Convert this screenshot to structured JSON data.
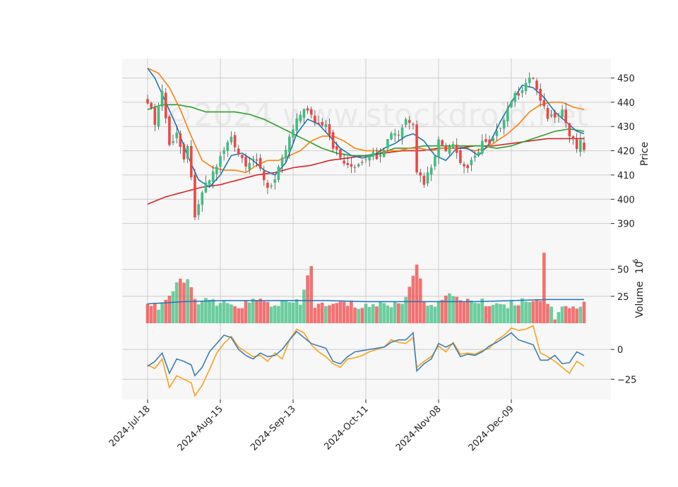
{
  "chart_data": {
    "type": "candlestick",
    "title": "",
    "watermark": "©2024 www.stockdroid.net",
    "xlabel": "",
    "ylabel_price": "Price",
    "ylabel_volume": "Volume",
    "volume_exponent_label": "10",
    "volume_exponent_power": "6",
    "date_ticks": [
      "2024-Jul-18",
      "2024-Aug-15",
      "2024-Sep-13",
      "2024-Oct-11",
      "2024-Nov-08",
      "2024-Dec-09"
    ],
    "date_tick_index": [
      0,
      20,
      40,
      60,
      80,
      100
    ],
    "num_bars": 121,
    "price_axis": {
      "ylim": [
        380,
        458
      ],
      "ticks": [
        390,
        400,
        410,
        420,
        430,
        440,
        450
      ]
    },
    "volume_axis": {
      "ylim": [
        0,
        70
      ],
      "ticks": [
        25,
        50
      ]
    },
    "osc_axis": {
      "ylim": [
        -42,
        22
      ],
      "ticks": [
        -25,
        0
      ]
    },
    "colors": {
      "up": "#3cbf80",
      "down": "#f04545",
      "grid": "#cccccc",
      "panel_bg": "#f7f7f7",
      "ma_short": "#1f77b4",
      "ma_mid": "#ff7f0e",
      "ma_long": "#2ca02c",
      "ma_longest": "#d62728",
      "volume_ma": "#1f77b4",
      "osc_fast": "#3f7fb5",
      "osc_slow": "#f5a31a"
    },
    "price_keypoints": [
      [
        0,
        441
      ],
      [
        2,
        432
      ],
      [
        4,
        445
      ],
      [
        6,
        422
      ],
      [
        8,
        428
      ],
      [
        10,
        415
      ],
      [
        11,
        421
      ],
      [
        12,
        410
      ],
      [
        13,
        391
      ],
      [
        15,
        403
      ],
      [
        17,
        408
      ],
      [
        19,
        414
      ],
      [
        21,
        420
      ],
      [
        23,
        426
      ],
      [
        25,
        419
      ],
      [
        27,
        415
      ],
      [
        29,
        417
      ],
      [
        31,
        412
      ],
      [
        33,
        405
      ],
      [
        35,
        408
      ],
      [
        37,
        416
      ],
      [
        39,
        425
      ],
      [
        41,
        432
      ],
      [
        43,
        438
      ],
      [
        45,
        434
      ],
      [
        47,
        431
      ],
      [
        49,
        432
      ],
      [
        51,
        422
      ],
      [
        53,
        417
      ],
      [
        55,
        413
      ],
      [
        57,
        414
      ],
      [
        59,
        416
      ],
      [
        61,
        419
      ],
      [
        63,
        418
      ],
      [
        65,
        421
      ],
      [
        67,
        428
      ],
      [
        69,
        427
      ],
      [
        71,
        433
      ],
      [
        73,
        432
      ],
      [
        74,
        412
      ],
      [
        76,
        407
      ],
      [
        78,
        414
      ],
      [
        80,
        424
      ],
      [
        82,
        421
      ],
      [
        84,
        424
      ],
      [
        86,
        415
      ],
      [
        88,
        413
      ],
      [
        90,
        417
      ],
      [
        92,
        424
      ],
      [
        94,
        422
      ],
      [
        96,
        427
      ],
      [
        98,
        434
      ],
      [
        100,
        441
      ],
      [
        102,
        444
      ],
      [
        104,
        448
      ],
      [
        106,
        450
      ],
      [
        108,
        440
      ],
      [
        110,
        434
      ],
      [
        112,
        435
      ],
      [
        114,
        437
      ],
      [
        116,
        426
      ],
      [
        118,
        421
      ],
      [
        119,
        423
      ],
      [
        120,
        421
      ]
    ],
    "volume_keypoints": [
      [
        0,
        20
      ],
      [
        3,
        15
      ],
      [
        6,
        26
      ],
      [
        9,
        38
      ],
      [
        11,
        40
      ],
      [
        13,
        22
      ],
      [
        16,
        20
      ],
      [
        20,
        18
      ],
      [
        22,
        16
      ],
      [
        26,
        17
      ],
      [
        30,
        21
      ],
      [
        34,
        18
      ],
      [
        38,
        19
      ],
      [
        42,
        18
      ],
      [
        45,
        55
      ],
      [
        46,
        17
      ],
      [
        50,
        16
      ],
      [
        54,
        19
      ],
      [
        58,
        16
      ],
      [
        62,
        17
      ],
      [
        66,
        18
      ],
      [
        70,
        18
      ],
      [
        74,
        55
      ],
      [
        76,
        20
      ],
      [
        80,
        19
      ],
      [
        84,
        26
      ],
      [
        88,
        21
      ],
      [
        92,
        19
      ],
      [
        96,
        18
      ],
      [
        100,
        18
      ],
      [
        104,
        22
      ],
      [
        108,
        23
      ],
      [
        109,
        65
      ],
      [
        110,
        20
      ],
      [
        112,
        6
      ],
      [
        114,
        18
      ],
      [
        117,
        14
      ],
      [
        120,
        18
      ]
    ],
    "osc_fast_keypoints": [
      [
        0,
        -14
      ],
      [
        2,
        -10
      ],
      [
        4,
        -3
      ],
      [
        6,
        -20
      ],
      [
        8,
        -8
      ],
      [
        10,
        -10
      ],
      [
        12,
        -13
      ],
      [
        13,
        -22
      ],
      [
        15,
        -15
      ],
      [
        17,
        -2
      ],
      [
        19,
        5
      ],
      [
        21,
        12
      ],
      [
        23,
        10
      ],
      [
        25,
        0
      ],
      [
        27,
        -5
      ],
      [
        29,
        -8
      ],
      [
        31,
        -3
      ],
      [
        33,
        -6
      ],
      [
        35,
        -5
      ],
      [
        37,
        0
      ],
      [
        39,
        8
      ],
      [
        41,
        15
      ],
      [
        43,
        10
      ],
      [
        45,
        5
      ],
      [
        47,
        3
      ],
      [
        49,
        1
      ],
      [
        51,
        -10
      ],
      [
        53,
        -12
      ],
      [
        55,
        -6
      ],
      [
        57,
        -2
      ],
      [
        59,
        -1
      ],
      [
        61,
        0
      ],
      [
        63,
        1
      ],
      [
        65,
        2
      ],
      [
        67,
        6
      ],
      [
        69,
        8
      ],
      [
        71,
        8
      ],
      [
        73,
        14
      ],
      [
        74,
        -18
      ],
      [
        76,
        -12
      ],
      [
        78,
        -8
      ],
      [
        80,
        5
      ],
      [
        82,
        2
      ],
      [
        84,
        5
      ],
      [
        86,
        -6
      ],
      [
        88,
        -4
      ],
      [
        90,
        -5
      ],
      [
        92,
        -2
      ],
      [
        94,
        3
      ],
      [
        96,
        6
      ],
      [
        98,
        10
      ],
      [
        100,
        14
      ],
      [
        102,
        8
      ],
      [
        104,
        6
      ],
      [
        106,
        4
      ],
      [
        108,
        -9
      ],
      [
        110,
        -9
      ],
      [
        112,
        -5
      ],
      [
        114,
        -12
      ],
      [
        116,
        -11
      ],
      [
        118,
        -2
      ],
      [
        120,
        -5
      ]
    ],
    "osc_slow_keypoints": [
      [
        0,
        -13
      ],
      [
        2,
        -16
      ],
      [
        4,
        -8
      ],
      [
        6,
        -32
      ],
      [
        8,
        -22
      ],
      [
        10,
        -25
      ],
      [
        12,
        -28
      ],
      [
        13,
        -39
      ],
      [
        15,
        -30
      ],
      [
        17,
        -17
      ],
      [
        19,
        -3
      ],
      [
        21,
        5
      ],
      [
        23,
        11
      ],
      [
        25,
        2
      ],
      [
        27,
        -2
      ],
      [
        29,
        -6
      ],
      [
        31,
        -5
      ],
      [
        33,
        -10
      ],
      [
        35,
        -3
      ],
      [
        37,
        -8
      ],
      [
        39,
        8
      ],
      [
        41,
        17
      ],
      [
        43,
        14
      ],
      [
        45,
        4
      ],
      [
        47,
        -2
      ],
      [
        49,
        -6
      ],
      [
        51,
        -12
      ],
      [
        53,
        -15
      ],
      [
        55,
        -8
      ],
      [
        57,
        -7
      ],
      [
        59,
        -5
      ],
      [
        61,
        -2
      ],
      [
        63,
        0
      ],
      [
        65,
        2
      ],
      [
        67,
        8
      ],
      [
        69,
        6
      ],
      [
        71,
        5
      ],
      [
        73,
        10
      ],
      [
        74,
        -15
      ],
      [
        76,
        -10
      ],
      [
        78,
        -6
      ],
      [
        80,
        3
      ],
      [
        82,
        -2
      ],
      [
        84,
        6
      ],
      [
        86,
        -4
      ],
      [
        88,
        -3
      ],
      [
        90,
        -4
      ],
      [
        92,
        -1
      ],
      [
        94,
        1
      ],
      [
        96,
        8
      ],
      [
        98,
        12
      ],
      [
        100,
        18
      ],
      [
        102,
        16
      ],
      [
        104,
        17
      ],
      [
        106,
        20
      ],
      [
        108,
        -3
      ],
      [
        110,
        -6
      ],
      [
        112,
        -10
      ],
      [
        114,
        -15
      ],
      [
        116,
        -20
      ],
      [
        118,
        -10
      ],
      [
        120,
        -14
      ]
    ],
    "ma_short_keypoints": [
      [
        0,
        454
      ],
      [
        2,
        450
      ],
      [
        5,
        440
      ],
      [
        8,
        430
      ],
      [
        11,
        418
      ],
      [
        14,
        408
      ],
      [
        17,
        405
      ],
      [
        20,
        410
      ],
      [
        23,
        418
      ],
      [
        26,
        419
      ],
      [
        29,
        416
      ],
      [
        32,
        412
      ],
      [
        35,
        410
      ],
      [
        38,
        415
      ],
      [
        41,
        427
      ],
      [
        44,
        433
      ],
      [
        47,
        431
      ],
      [
        50,
        426
      ],
      [
        53,
        421
      ],
      [
        56,
        418
      ],
      [
        59,
        417
      ],
      [
        62,
        418
      ],
      [
        65,
        421
      ],
      [
        68,
        423
      ],
      [
        71,
        426
      ],
      [
        73,
        427
      ],
      [
        76,
        424
      ],
      [
        79,
        418
      ],
      [
        82,
        416
      ],
      [
        85,
        421
      ],
      [
        88,
        421
      ],
      [
        91,
        418
      ],
      [
        94,
        423
      ],
      [
        97,
        432
      ],
      [
        100,
        440
      ],
      [
        103,
        447
      ],
      [
        106,
        446
      ],
      [
        109,
        442
      ],
      [
        112,
        436
      ],
      [
        115,
        432
      ],
      [
        118,
        428
      ],
      [
        120,
        427
      ]
    ],
    "ma_mid_keypoints": [
      [
        0,
        454
      ],
      [
        3,
        452
      ],
      [
        6,
        446
      ],
      [
        9,
        437
      ],
      [
        12,
        426
      ],
      [
        15,
        416
      ],
      [
        18,
        413
      ],
      [
        21,
        412
      ],
      [
        24,
        412
      ],
      [
        27,
        411
      ],
      [
        30,
        414
      ],
      [
        33,
        416
      ],
      [
        36,
        416
      ],
      [
        39,
        418
      ],
      [
        42,
        420
      ],
      [
        45,
        424
      ],
      [
        48,
        426
      ],
      [
        51,
        426
      ],
      [
        54,
        424
      ],
      [
        57,
        421
      ],
      [
        60,
        420
      ],
      [
        63,
        420
      ],
      [
        66,
        420
      ],
      [
        69,
        420
      ],
      [
        72,
        421
      ],
      [
        75,
        421
      ],
      [
        78,
        420
      ],
      [
        81,
        421
      ],
      [
        84,
        421
      ],
      [
        87,
        421
      ],
      [
        90,
        420
      ],
      [
        93,
        421
      ],
      [
        96,
        424
      ],
      [
        99,
        427
      ],
      [
        102,
        431
      ],
      [
        105,
        436
      ],
      [
        108,
        439
      ],
      [
        111,
        440
      ],
      [
        114,
        440
      ],
      [
        117,
        438
      ],
      [
        120,
        437
      ]
    ],
    "ma_long_keypoints": [
      [
        0,
        437
      ],
      [
        4,
        439
      ],
      [
        8,
        439
      ],
      [
        12,
        438
      ],
      [
        16,
        436
      ],
      [
        20,
        436
      ],
      [
        24,
        436
      ],
      [
        28,
        435
      ],
      [
        32,
        433
      ],
      [
        36,
        430
      ],
      [
        40,
        427
      ],
      [
        44,
        424
      ],
      [
        48,
        421
      ],
      [
        52,
        419
      ],
      [
        56,
        418
      ],
      [
        60,
        418
      ],
      [
        64,
        419
      ],
      [
        68,
        421
      ],
      [
        72,
        421
      ],
      [
        76,
        422
      ],
      [
        80,
        422
      ],
      [
        84,
        422
      ],
      [
        88,
        422
      ],
      [
        92,
        422
      ],
      [
        96,
        421
      ],
      [
        100,
        422
      ],
      [
        104,
        424
      ],
      [
        108,
        426
      ],
      [
        112,
        428
      ],
      [
        116,
        429
      ],
      [
        120,
        428
      ]
    ],
    "ma_longest_keypoints": [
      [
        0,
        398
      ],
      [
        5,
        401
      ],
      [
        10,
        403
      ],
      [
        15,
        405
      ],
      [
        20,
        406
      ],
      [
        25,
        408
      ],
      [
        30,
        410
      ],
      [
        35,
        411
      ],
      [
        40,
        413
      ],
      [
        45,
        414
      ],
      [
        50,
        416
      ],
      [
        55,
        417
      ],
      [
        60,
        418
      ],
      [
        65,
        419
      ],
      [
        70,
        420
      ],
      [
        75,
        420
      ],
      [
        80,
        421
      ],
      [
        85,
        421
      ],
      [
        90,
        422
      ],
      [
        95,
        422
      ],
      [
        100,
        423
      ],
      [
        105,
        424
      ],
      [
        110,
        425
      ],
      [
        115,
        425
      ],
      [
        120,
        425
      ]
    ],
    "volume_ma_keypoints": [
      [
        0,
        18
      ],
      [
        10,
        20
      ],
      [
        20,
        21
      ],
      [
        30,
        21
      ],
      [
        40,
        21
      ],
      [
        50,
        21
      ],
      [
        60,
        20
      ],
      [
        70,
        20
      ],
      [
        80,
        20
      ],
      [
        90,
        20
      ],
      [
        100,
        21
      ],
      [
        110,
        22
      ],
      [
        120,
        22
      ]
    ]
  }
}
